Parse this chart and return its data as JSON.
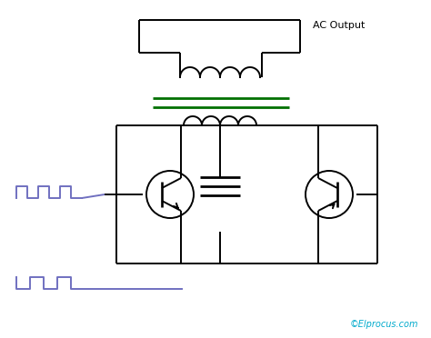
{
  "bg_color": "#ffffff",
  "line_color": "#000000",
  "purple_color": "#7070c0",
  "green_color": "#007000",
  "text_color": "#000000",
  "watermark_color": "#00aacc",
  "ac_output_text": "AC Output",
  "watermark_text": "©Elprocus.com",
  "fig_width": 4.74,
  "fig_height": 3.72,
  "dpi": 100
}
